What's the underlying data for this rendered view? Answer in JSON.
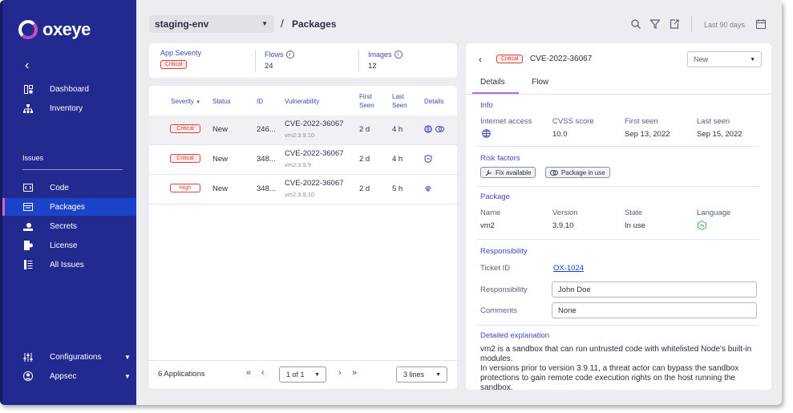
{
  "app": {
    "name": "oxeye"
  },
  "sidebar": {
    "items_top": [
      {
        "label": "Dashboard",
        "icon": "dashboard-icon"
      },
      {
        "label": "Inventory",
        "icon": "inventory-icon"
      }
    ],
    "section": "Issues",
    "items_issues": [
      {
        "label": "Code",
        "icon": "code-icon"
      },
      {
        "label": "Packages",
        "icon": "packages-icon",
        "active": true
      },
      {
        "label": "Secrets",
        "icon": "secrets-icon"
      },
      {
        "label": "License",
        "icon": "license-icon"
      },
      {
        "label": "All Issues",
        "icon": "list-icon"
      }
    ],
    "items_bottom": [
      {
        "label": "Configurations",
        "icon": "sliders-icon"
      },
      {
        "label": "Appsec",
        "icon": "user-icon"
      }
    ]
  },
  "header": {
    "env": "staging-env",
    "separator": "/",
    "title": "Packages",
    "period": "Last 90 days"
  },
  "stats": {
    "severity_title": "App Severity",
    "severity_value": "Critical",
    "flows_title": "Flows",
    "flows_value": "24",
    "images_title": "Images",
    "images_value": "12"
  },
  "table": {
    "headers": {
      "severity": "Severity",
      "status": "Status",
      "id": "ID",
      "vulnerability": "Vulnerability",
      "first_seen": "First Seen",
      "last_seen": "Last Seen",
      "details": "Details"
    },
    "rows": [
      {
        "severity": "Critical",
        "status": "New",
        "id": "246...",
        "cve": "CVE-2022-36067",
        "pkg": "vm2:3.9.10",
        "first": "2 d",
        "last": "4 h"
      },
      {
        "severity": "Critical",
        "status": "New",
        "id": "348...",
        "cve": "CVE-2022-36067",
        "pkg": "vm2:3.9.9",
        "first": "2 d",
        "last": "4 h"
      },
      {
        "severity": "High",
        "status": "New",
        "id": "348...",
        "cve": "CVE-2022-36067",
        "pkg": "vm2:3.9.10",
        "first": "2 d",
        "last": "5 h"
      }
    ],
    "footer": {
      "count": "6 Applications",
      "page": "1 of 1",
      "lines": "3 lines"
    }
  },
  "detail": {
    "severity": "Critical",
    "cve": "CVE-2022-36067",
    "status": "New",
    "tabs": [
      "Details",
      "Flow"
    ],
    "info": {
      "title": "Info",
      "internet_access_label": "Internet access",
      "cvss_label": "CVSS score",
      "cvss_value": "10.0",
      "first_seen_label": "First seen",
      "first_seen_value": "Sep 13, 2022",
      "last_seen_label": "Last seen",
      "last_seen_value": "Sep 15, 2022"
    },
    "risk": {
      "title": "Risk factors",
      "chips": [
        "Fix available",
        "Package in use"
      ]
    },
    "package": {
      "title": "Package",
      "name_label": "Name",
      "name_value": "vm2",
      "version_label": "Version",
      "version_value": "3.9.10",
      "state_label": "State",
      "state_value": "In use",
      "language_label": "Language"
    },
    "responsibility": {
      "title": "Responsibility",
      "ticket_label": "Ticket ID",
      "ticket_value": "OX-1024",
      "resp_label": "Responsibility",
      "resp_value": "John Doe",
      "comments_label": "Comments",
      "comments_value": "None"
    },
    "explanation": {
      "title": "Detailed explanation",
      "p1": "vm2 is a sandbox that can run untrusted code with whitelisted Node's built-in modules.",
      "p2": "In versions prior to version 3.9.11, a threat actor can bypass the sandbox protections to gain remote code execution rights on the host running the sandbox."
    }
  },
  "colors": {
    "sidebar": "#232a8f",
    "active": "#1a43c9",
    "accent": "#3e4bb8",
    "critical": "#d9413b",
    "tab_underline": "#b06fe0"
  }
}
